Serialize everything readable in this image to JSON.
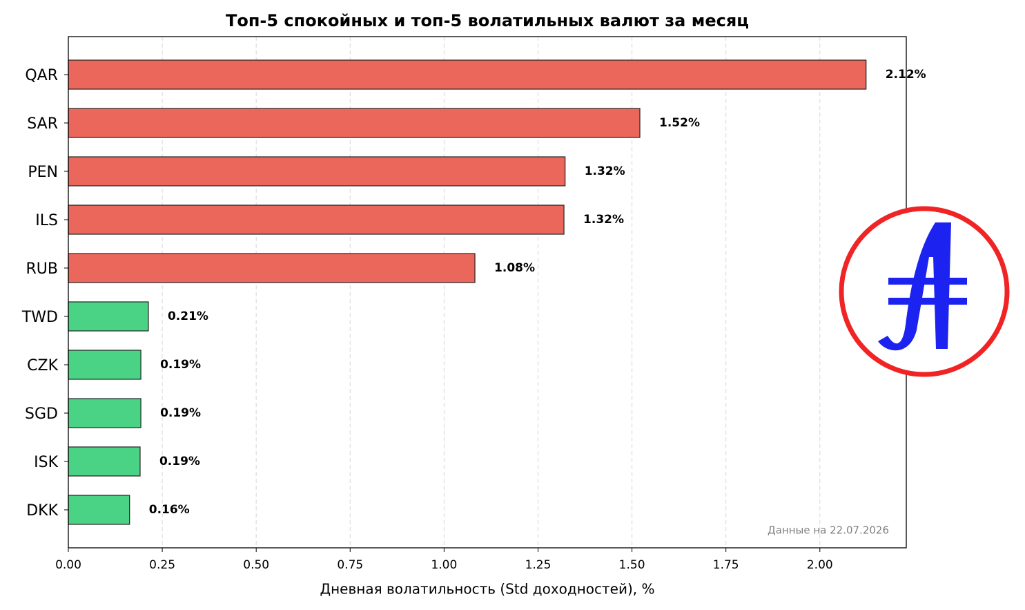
{
  "chart_data": {
    "type": "barh",
    "title": "Топ-5 спокойных и топ-5 волатильных валют за месяц",
    "x_label": "Дневная волатильность (Std доходностей), %",
    "annotation": "Данные на 22.07.2026",
    "categories": [
      "QAR",
      "SAR",
      "PEN",
      "ILS",
      "RUB",
      "TWD",
      "CZK",
      "SGD",
      "ISK",
      "DKK"
    ],
    "values": [
      2.123,
      1.521,
      1.322,
      1.319,
      1.082,
      0.213,
      0.193,
      0.193,
      0.191,
      0.163
    ],
    "value_labels": [
      "2.12%",
      "1.52%",
      "1.32%",
      "1.32%",
      "1.08%",
      "0.21%",
      "0.19%",
      "0.19%",
      "0.19%",
      "0.16%"
    ],
    "colors": [
      "#eb675c",
      "#eb675c",
      "#eb675c",
      "#eb675c",
      "#eb675c",
      "#4ad384",
      "#4ad384",
      "#4ad384",
      "#4ad384",
      "#4ad384"
    ],
    "xlim": [
      0,
      2.23
    ],
    "xticks": [
      {
        "value": 0,
        "label": "0.00"
      },
      0.25,
      {
        "value": 0.5,
        "label": "0.50"
      },
      0.75,
      {
        "value": 1,
        "label": "1.00"
      },
      1.25,
      {
        "value": 1.5,
        "label": "1.50"
      },
      1.75,
      {
        "value": 2,
        "label": "2.00"
      }
    ],
    "grid": true
  }
}
